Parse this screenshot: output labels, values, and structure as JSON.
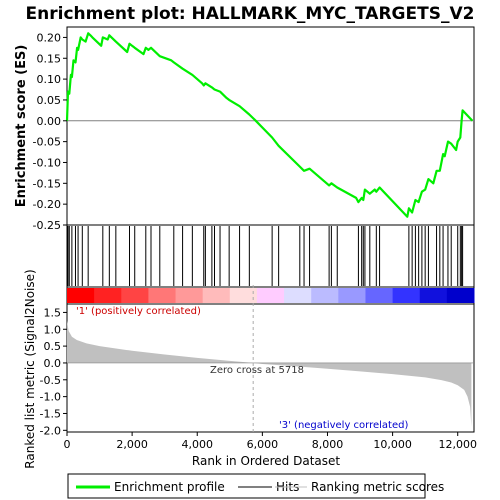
{
  "chart_data": {
    "type": "line",
    "title": "Enrichment plot: HALLMARK_MYC_TARGETS_V2",
    "ylabel_top": "Enrichment score (ES)",
    "ylabel_bottom": "Ranked list metric (Signal2Noise)",
    "xlabel": "Rank in Ordered Dataset",
    "xlim": [
      0,
      12500
    ],
    "x_ticks": [
      0,
      2000,
      4000,
      6000,
      8000,
      10000,
      12000
    ],
    "x_tick_labels": [
      "0",
      "2,000",
      "4,000",
      "6,000",
      "8,000",
      "10,000",
      "12,000"
    ],
    "es_ylim": [
      -0.25,
      0.225
    ],
    "es_ticks": [
      -0.25,
      -0.2,
      -0.15,
      -0.1,
      -0.05,
      0.0,
      0.05,
      0.1,
      0.15,
      0.2
    ],
    "es_tick_labels": [
      "-0.25",
      "-0.20",
      "-0.15",
      "-0.10",
      "-0.05",
      "0.00",
      "0.05",
      "0.10",
      "0.15",
      "0.20"
    ],
    "metric_ylim": [
      -2.05,
      1.75
    ],
    "metric_ticks": [
      -2.0,
      -1.5,
      -1.0,
      -0.5,
      0.0,
      0.5,
      1.0,
      1.5
    ],
    "metric_tick_labels": [
      "-2.0",
      "-1.5",
      "-1.0",
      "-0.5",
      "0.0",
      "0.5",
      "1.0",
      "1.5"
    ],
    "series": [
      {
        "name": "Enrichment profile",
        "color": "#00ee00",
        "x": [
          0,
          30,
          70,
          120,
          150,
          200,
          260,
          310,
          340,
          420,
          470,
          570,
          650,
          720,
          780,
          1050,
          1100,
          1250,
          1300,
          1500,
          1850,
          1920,
          2000,
          2080,
          2350,
          2420,
          2500,
          2580,
          2850,
          3200,
          3280,
          3550,
          3850,
          4150,
          4200,
          4250,
          4450,
          4530,
          4700,
          4900,
          4980,
          5300,
          5600,
          5800,
          6300,
          6500,
          7150,
          7280,
          7450,
          8050,
          8120,
          8300,
          8880,
          8950,
          9050,
          9100,
          9150,
          9300,
          9450,
          9500,
          9600,
          10450,
          10500,
          10600,
          10700,
          10800,
          10900,
          11000,
          11100,
          11250,
          11350,
          11450,
          11550,
          11600,
          11700,
          11800,
          11950,
          12000,
          12080,
          12120,
          12150,
          12450
        ],
        "y": [
          0.0,
          0.07,
          0.065,
          0.11,
          0.105,
          0.145,
          0.14,
          0.175,
          0.17,
          0.2,
          0.195,
          0.19,
          0.21,
          0.205,
          0.2,
          0.18,
          0.2,
          0.195,
          0.205,
          0.19,
          0.165,
          0.185,
          0.18,
          0.175,
          0.16,
          0.175,
          0.17,
          0.175,
          0.155,
          0.145,
          0.14,
          0.125,
          0.11,
          0.09,
          0.085,
          0.09,
          0.08,
          0.075,
          0.07,
          0.055,
          0.05,
          0.035,
          0.015,
          0.0,
          -0.04,
          -0.06,
          -0.11,
          -0.12,
          -0.115,
          -0.155,
          -0.15,
          -0.16,
          -0.185,
          -0.195,
          -0.185,
          -0.19,
          -0.165,
          -0.175,
          -0.165,
          -0.17,
          -0.16,
          -0.23,
          -0.21,
          -0.22,
          -0.19,
          -0.195,
          -0.17,
          -0.165,
          -0.14,
          -0.15,
          -0.12,
          -0.12,
          -0.08,
          -0.085,
          -0.05,
          -0.055,
          -0.07,
          -0.05,
          -0.04,
          0.0,
          0.025,
          0.0
        ]
      }
    ],
    "hits": [
      30,
      70,
      150,
      260,
      340,
      470,
      650,
      1100,
      1300,
      1500,
      1920,
      2080,
      2420,
      2580,
      2850,
      3280,
      3550,
      3850,
      4200,
      4250,
      4450,
      4530,
      4700,
      4980,
      5300,
      5600,
      6300,
      6500,
      7150,
      7280,
      7450,
      8050,
      8120,
      8300,
      8950,
      9050,
      9100,
      9150,
      9300,
      9500,
      9600,
      10500,
      10600,
      10700,
      10800,
      10900,
      11000,
      11100,
      11350,
      11450,
      11550,
      11700,
      11800,
      12000,
      12080,
      12120,
      12150
    ],
    "metric_x": [
      0,
      50,
      150,
      300,
      600,
      1000,
      2000,
      3000,
      4000,
      5000,
      5718,
      6000,
      7000,
      8000,
      9000,
      10000,
      11000,
      11500,
      11800,
      12000,
      12200,
      12300,
      12380,
      12420
    ],
    "metric_y": [
      1.25,
      0.95,
      0.78,
      0.68,
      0.58,
      0.5,
      0.36,
      0.25,
      0.15,
      0.06,
      0.0,
      -0.03,
      -0.1,
      -0.17,
      -0.25,
      -0.33,
      -0.43,
      -0.51,
      -0.58,
      -0.66,
      -0.8,
      -1.0,
      -1.3,
      -1.9
    ],
    "heatmap_colors": [
      "#ff0000",
      "#ff2222",
      "#ff4444",
      "#ff7777",
      "#ff9999",
      "#ffbbbb",
      "#ffdddd",
      "#ffccff",
      "#ddddff",
      "#bbbbff",
      "#9999ff",
      "#6666ff",
      "#3333ff",
      "#1111dd",
      "#0000cc"
    ],
    "zero_cross_x": 5718,
    "annotations": {
      "positive": "'1' (positively correlated)",
      "zero_cross": "Zero cross at 5718",
      "negative": "'3' (negatively correlated)"
    },
    "legend": [
      {
        "label": "Enrichment profile",
        "color": "#00ee00"
      },
      {
        "label": "Hits",
        "color": "#000000"
      },
      {
        "label": "Ranking metric scores",
        "color": "#c0c0c0"
      }
    ]
  }
}
